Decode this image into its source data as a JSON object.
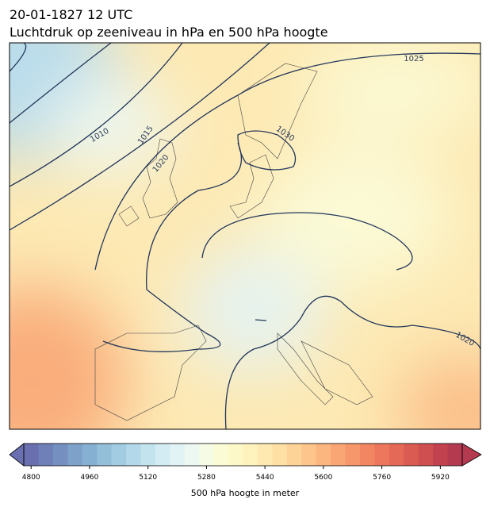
{
  "header": {
    "title": "20-01-1827 12 UTC",
    "subtitle": "Luchtdruk op zeeniveau in hPa en 500 hPa hoogte"
  },
  "map": {
    "contour_labels": [
      "1010",
      "1015",
      "1020",
      "1025",
      "1030",
      "1020"
    ]
  },
  "colorbar": {
    "label": "500 hPa hoogte in meter",
    "levels": [
      4780,
      4820,
      4860,
      4900,
      4940,
      4980,
      5020,
      5060,
      5100,
      5140,
      5180,
      5220,
      5260,
      5300,
      5340,
      5380,
      5420,
      5460,
      5500,
      5540,
      5580,
      5620,
      5660,
      5700,
      5740,
      5780,
      5820,
      5860,
      5900,
      5940,
      5980
    ],
    "colors": [
      "#6a6fb0",
      "#6f80b8",
      "#7590c0",
      "#7da1c8",
      "#86b0d1",
      "#93bfd9",
      "#a2cce2",
      "#b2d8e9",
      "#c3e3ef",
      "#d3ecf3",
      "#e2f3f5",
      "#eef8f2",
      "#f6fbe6",
      "#fbfcd6",
      "#fdf8c8",
      "#fef2bd",
      "#fee9b1",
      "#fedfa4",
      "#fdd398",
      "#fdc58b",
      "#fbb67f",
      "#f9a674",
      "#f6966b",
      "#f28663",
      "#ec775c",
      "#e46956",
      "#da5b52",
      "#cf4e4f",
      "#c2434f",
      "#b43a50"
    ],
    "ticks": [
      4800,
      4960,
      5120,
      5280,
      5440,
      5600,
      5760,
      5920
    ]
  }
}
